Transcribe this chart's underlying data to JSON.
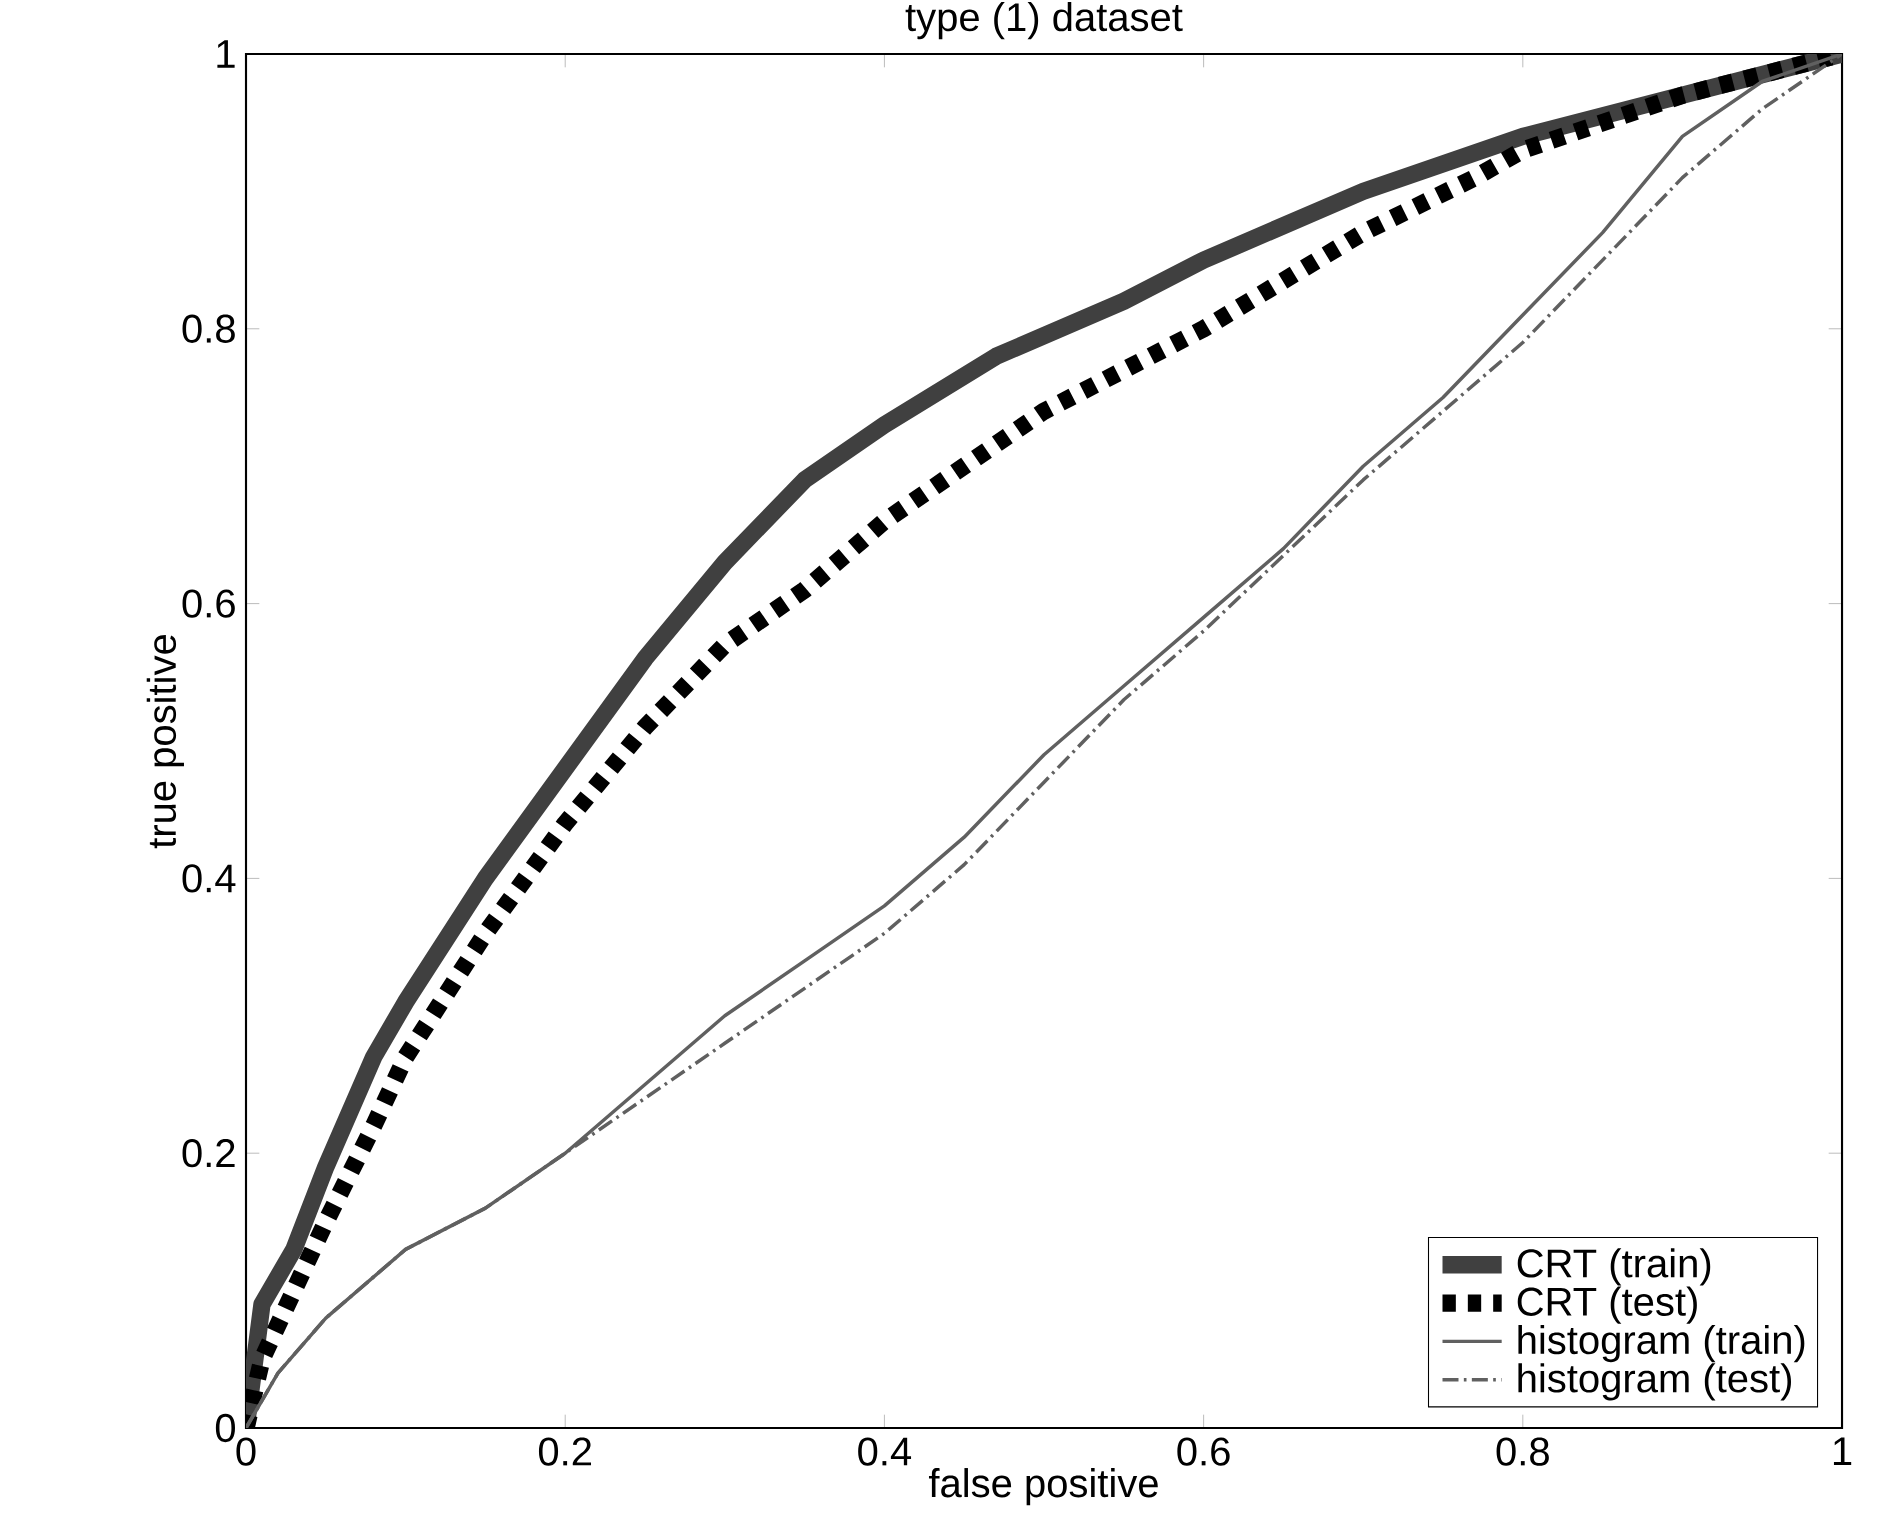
{
  "chart_data": {
    "type": "line",
    "title": "type (1) dataset",
    "xlabel": "false positive",
    "ylabel": "true positive",
    "xlim": [
      0,
      1
    ],
    "ylim": [
      0,
      1
    ],
    "xticks": [
      0,
      0.2,
      0.4,
      0.6,
      0.8,
      1
    ],
    "yticks": [
      0,
      0.2,
      0.4,
      0.6,
      0.8,
      1
    ],
    "grid": false,
    "legend": "bottom right",
    "marker": "none",
    "series": [
      {
        "name": "CRT (train)",
        "color": "#404040",
        "line_style": "solid",
        "x": [
          0,
          0.01,
          0.03,
          0.05,
          0.08,
          0.1,
          0.15,
          0.2,
          0.25,
          0.3,
          0.35,
          0.4,
          0.47,
          0.55,
          0.6,
          0.7,
          0.8,
          0.9,
          1
        ],
        "values": [
          0,
          0.09,
          0.13,
          0.19,
          0.27,
          0.31,
          0.4,
          0.48,
          0.56,
          0.63,
          0.69,
          0.73,
          0.78,
          0.82,
          0.85,
          0.9,
          0.94,
          0.97,
          1
        ]
      },
      {
        "name": "CRT (test)",
        "color": "#000000",
        "line_style": "dashed",
        "x": [
          0,
          0.01,
          0.03,
          0.05,
          0.08,
          0.1,
          0.15,
          0.2,
          0.25,
          0.3,
          0.35,
          0.4,
          0.45,
          0.5,
          0.6,
          0.7,
          0.77,
          0.8,
          0.9,
          1
        ],
        "values": [
          0,
          0.05,
          0.1,
          0.15,
          0.22,
          0.27,
          0.36,
          0.44,
          0.51,
          0.57,
          0.61,
          0.66,
          0.7,
          0.74,
          0.8,
          0.87,
          0.91,
          0.93,
          0.97,
          1
        ]
      },
      {
        "name": "histogram (train)",
        "color": "#606060",
        "line_style": "solid",
        "x": [
          0,
          0.02,
          0.05,
          0.1,
          0.15,
          0.2,
          0.25,
          0.3,
          0.35,
          0.4,
          0.45,
          0.5,
          0.55,
          0.6,
          0.65,
          0.7,
          0.75,
          0.8,
          0.85,
          0.9,
          0.95,
          1
        ],
        "values": [
          0,
          0.04,
          0.08,
          0.13,
          0.16,
          0.2,
          0.25,
          0.3,
          0.34,
          0.38,
          0.43,
          0.49,
          0.54,
          0.59,
          0.64,
          0.7,
          0.75,
          0.81,
          0.87,
          0.94,
          0.98,
          1
        ]
      },
      {
        "name": "histogram (test)",
        "color": "#606060",
        "line_style": "dashdot",
        "x": [
          0,
          0.02,
          0.05,
          0.1,
          0.15,
          0.2,
          0.25,
          0.3,
          0.35,
          0.4,
          0.45,
          0.5,
          0.55,
          0.6,
          0.7,
          0.8,
          0.85,
          0.9,
          0.95,
          1
        ],
        "values": [
          0,
          0.04,
          0.08,
          0.13,
          0.16,
          0.2,
          0.24,
          0.28,
          0.32,
          0.36,
          0.41,
          0.47,
          0.53,
          0.58,
          0.69,
          0.79,
          0.85,
          0.91,
          0.96,
          1
        ]
      }
    ]
  }
}
